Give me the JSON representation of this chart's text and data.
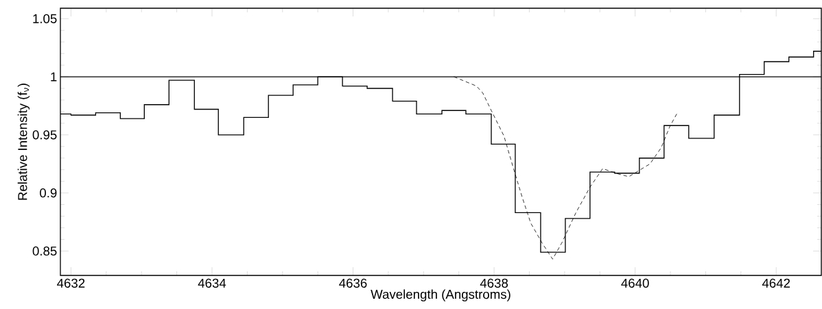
{
  "chart_data": {
    "type": "histogram",
    "xlabel": "Wavelength (Angstroms)",
    "ylabel": "Relative Intensity (f$_{ν}$)",
    "bins": [
      4631.85,
      4632.0,
      4632.35,
      4632.7,
      4633.04,
      4633.39,
      4633.75,
      4634.09,
      4634.45,
      4634.8,
      4635.15,
      4635.5,
      4635.85,
      4636.2,
      4636.56,
      4636.9,
      4637.26,
      4637.6,
      4637.96,
      4638.3,
      4638.66,
      4639.01,
      4639.36,
      4639.71,
      4640.06,
      4640.41,
      4640.76,
      4641.12,
      4641.48,
      4641.83,
      4642.18,
      4642.53,
      4642.64
    ],
    "values": [
      0.968,
      0.967,
      0.969,
      0.964,
      0.976,
      0.997,
      0.972,
      0.95,
      0.965,
      0.984,
      0.993,
      1.0,
      0.992,
      0.99,
      0.979,
      0.968,
      0.971,
      0.968,
      0.942,
      0.883,
      0.849,
      0.878,
      0.918,
      0.917,
      0.93,
      0.958,
      0.947,
      0.967,
      1.002,
      1.013,
      1.017,
      1.022
    ],
    "color": "#000000",
    "series": [
      {
        "type": "line",
        "color": "#000000",
        "line_style": "dashed",
        "x": [
          4637.43,
          4637.75,
          4637.84,
          4637.96,
          4638.14,
          4638.28,
          4638.4,
          4638.52,
          4638.68,
          4638.83,
          4638.96,
          4639.16,
          4639.36,
          4639.54,
          4639.72,
          4639.91,
          4640.21,
          4640.37,
          4640.49,
          4640.59
        ],
        "values": [
          1.0,
          0.992,
          0.986,
          0.971,
          0.949,
          0.92,
          0.896,
          0.874,
          0.857,
          0.843,
          0.857,
          0.883,
          0.905,
          0.921,
          0.917,
          0.914,
          0.925,
          0.939,
          0.957,
          0.968
        ]
      }
    ],
    "ref_lines": [
      {
        "axis": "y",
        "value": 1,
        "color": "#000000"
      }
    ],
    "xlim": [
      4631.85,
      4642.64
    ],
    "ylim": [
      0.829,
      1.059
    ],
    "xticks": [
      4632,
      4634,
      4636,
      4638,
      4640,
      4642
    ],
    "yticks": [
      0.85,
      0.9,
      0.95,
      1,
      1.05
    ]
  }
}
